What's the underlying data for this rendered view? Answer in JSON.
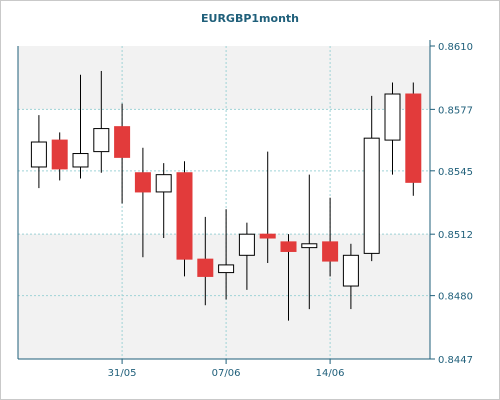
{
  "chart_data": {
    "type": "candlestick",
    "title": "EURGBP1month",
    "xlabel": "",
    "ylabel": "",
    "ylim": [
      0.8447,
      0.861
    ],
    "y_ticks": [
      "0.8610",
      "0.8577",
      "0.8545",
      "0.8512",
      "0.8480",
      "0.8447"
    ],
    "x_ticks": [
      {
        "label": "31/05",
        "index": 4.5
      },
      {
        "label": "07/06",
        "index": 9.5
      },
      {
        "label": "14/06",
        "index": 14.5
      }
    ],
    "grid": true,
    "colors": {
      "background": "#ffffff",
      "plot_fill": "#f2f2f2",
      "plot_band": "#ffffff",
      "grid": "#9fd3d6",
      "axis": "#1f5f7a",
      "up": "#ffffff",
      "down": "#e23b3b",
      "wick": "#000000"
    },
    "candles": [
      {
        "open": 0.8547,
        "high": 0.8574,
        "low": 0.8536,
        "close": 0.856
      },
      {
        "open": 0.8561,
        "high": 0.8565,
        "low": 0.854,
        "close": 0.8546
      },
      {
        "open": 0.8547,
        "high": 0.8595,
        "low": 0.8541,
        "close": 0.8554
      },
      {
        "open": 0.8555,
        "high": 0.8597,
        "low": 0.8544,
        "close": 0.8567
      },
      {
        "open": 0.8568,
        "high": 0.858,
        "low": 0.8528,
        "close": 0.8552
      },
      {
        "open": 0.8544,
        "high": 0.8557,
        "low": 0.85,
        "close": 0.8534
      },
      {
        "open": 0.8534,
        "high": 0.8549,
        "low": 0.851,
        "close": 0.8543
      },
      {
        "open": 0.8544,
        "high": 0.855,
        "low": 0.849,
        "close": 0.8499
      },
      {
        "open": 0.8499,
        "high": 0.8521,
        "low": 0.8475,
        "close": 0.849
      },
      {
        "open": 0.8492,
        "high": 0.8525,
        "low": 0.8478,
        "close": 0.8496
      },
      {
        "open": 0.8501,
        "high": 0.8518,
        "low": 0.8483,
        "close": 0.8512
      },
      {
        "open": 0.8512,
        "high": 0.8555,
        "low": 0.8497,
        "close": 0.851
      },
      {
        "open": 0.8508,
        "high": 0.8512,
        "low": 0.8467,
        "close": 0.8503
      },
      {
        "open": 0.8505,
        "high": 0.8543,
        "low": 0.8473,
        "close": 0.8507
      },
      {
        "open": 0.8508,
        "high": 0.8531,
        "low": 0.849,
        "close": 0.8498
      },
      {
        "open": 0.8485,
        "high": 0.8507,
        "low": 0.8473,
        "close": 0.8501
      },
      {
        "open": 0.8502,
        "high": 0.8584,
        "low": 0.8498,
        "close": 0.8562
      },
      {
        "open": 0.8561,
        "high": 0.8591,
        "low": 0.8543,
        "close": 0.8585
      },
      {
        "open": 0.8585,
        "high": 0.8591,
        "low": 0.8532,
        "close": 0.8539
      }
    ]
  }
}
